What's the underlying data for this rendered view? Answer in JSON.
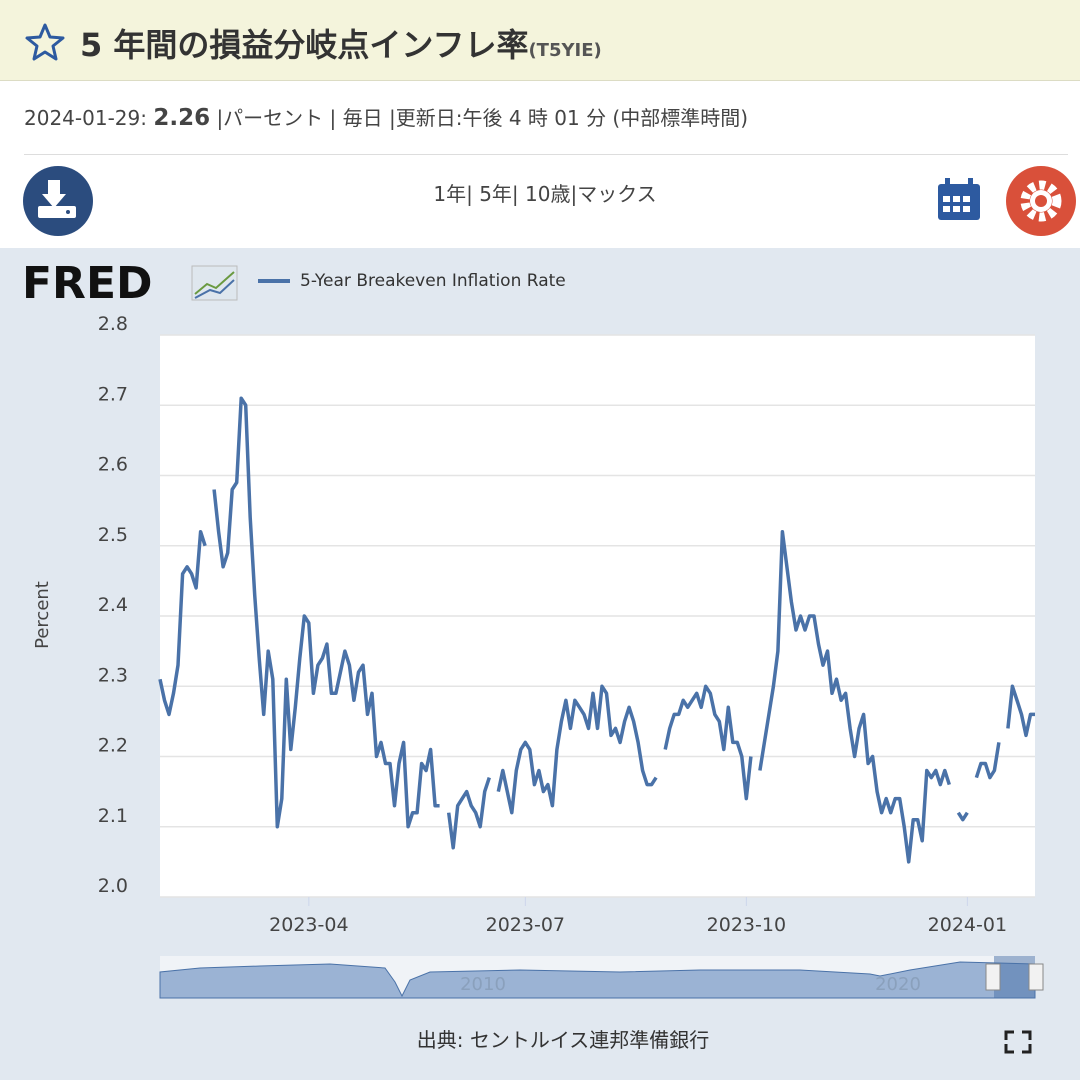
{
  "header": {
    "title": "5 年間の損益分岐点インフレ率",
    "ticker": "(T5YIE)"
  },
  "info": {
    "date": "2024-01-29:",
    "value": "2.26",
    "details": "|パーセント | 毎日 |更新日:午後 4 時 01 分 (中部標準時間)"
  },
  "toolbar": {
    "ranges": "1年| 5年| 10歳|マックス"
  },
  "logo": "FRED",
  "navigator": {
    "labels": [
      "2010",
      "2020"
    ]
  },
  "footer": {
    "source": "出典: セントルイス連邦準備銀行"
  },
  "chart_data": {
    "type": "line",
    "y_label": "Percent",
    "grid": true,
    "legend": "top-left",
    "ylim": [
      2.0,
      2.8
    ],
    "yticks": [
      {
        "value": 2,
        "label": "2.0"
      },
      2.1,
      2.2,
      2.3,
      2.4,
      2.5,
      2.6,
      2.7,
      2.8
    ],
    "categories": [
      null,
      null,
      null,
      null,
      null,
      null,
      null,
      null,
      null,
      null,
      null,
      null,
      null,
      null,
      null,
      null,
      null,
      null,
      null,
      null,
      null,
      null,
      null,
      null,
      null,
      null,
      null,
      null,
      null,
      null,
      null,
      null,
      null,
      "2023-04",
      null,
      null,
      null,
      null,
      null,
      null,
      null,
      null,
      null,
      null,
      null,
      null,
      null,
      null,
      null,
      null,
      null,
      null,
      null,
      null,
      null,
      null,
      null,
      null,
      null,
      null,
      null,
      null,
      null,
      null,
      null,
      null,
      null,
      null,
      null,
      null,
      null,
      null,
      null,
      null,
      null,
      null,
      null,
      null,
      null,
      null,
      null,
      "2023-07",
      null,
      null,
      null,
      null,
      null,
      null,
      null,
      null,
      null,
      null,
      null,
      null,
      null,
      null,
      null,
      null,
      null,
      null,
      null,
      null,
      null,
      null,
      null,
      null,
      null,
      null,
      null,
      null,
      null,
      null,
      null,
      null,
      null,
      null,
      null,
      null,
      null,
      null,
      null,
      null,
      null,
      null,
      null,
      null,
      null,
      null,
      null,
      null,
      "2023-10",
      null,
      null,
      null,
      null,
      null,
      null,
      null,
      null,
      null,
      null,
      null,
      null,
      null,
      null,
      null,
      null,
      null,
      null,
      null,
      null,
      null,
      null,
      null,
      null,
      null,
      null,
      null,
      null,
      null,
      null,
      null,
      null,
      null,
      null,
      null,
      null,
      null,
      null,
      null,
      null,
      null,
      null,
      null,
      null,
      null,
      null,
      null,
      null,
      "2024-01",
      null,
      null,
      null,
      null,
      null,
      null,
      null,
      null,
      null,
      null,
      null,
      null,
      null,
      null,
      null
    ],
    "series": [
      {
        "name": "5-Year Breakeven Inflation Rate",
        "color": "#4a72a8",
        "values": [
          2.31,
          2.28,
          2.26,
          2.29,
          2.33,
          2.46,
          2.47,
          2.46,
          2.44,
          2.52,
          2.5,
          null,
          2.58,
          2.52,
          2.47,
          2.49,
          2.58,
          2.59,
          2.71,
          2.7,
          2.54,
          2.43,
          2.34,
          2.26,
          2.35,
          2.31,
          2.1,
          2.14,
          2.31,
          2.21,
          2.27,
          2.34,
          2.4,
          2.39,
          2.29,
          2.33,
          2.34,
          2.36,
          2.29,
          2.29,
          2.32,
          2.35,
          2.33,
          2.28,
          2.32,
          2.33,
          2.26,
          2.29,
          2.2,
          2.22,
          2.19,
          2.19,
          2.13,
          2.19,
          2.22,
          2.1,
          2.12,
          2.12,
          2.19,
          2.18,
          2.21,
          2.13,
          2.13,
          null,
          2.12,
          2.07,
          2.13,
          2.14,
          2.15,
          2.13,
          2.12,
          2.1,
          2.15,
          2.17,
          null,
          2.15,
          2.18,
          2.15,
          2.12,
          2.18,
          2.21,
          2.22,
          2.21,
          2.16,
          2.18,
          2.15,
          2.16,
          2.13,
          2.21,
          2.25,
          2.28,
          2.24,
          2.28,
          2.27,
          2.26,
          2.24,
          2.29,
          2.24,
          2.3,
          2.29,
          2.23,
          2.24,
          2.22,
          2.25,
          2.27,
          2.25,
          2.22,
          2.18,
          2.16,
          2.16,
          2.17,
          null,
          2.21,
          2.24,
          2.26,
          2.26,
          2.28,
          2.27,
          2.28,
          2.29,
          2.27,
          2.3,
          2.29,
          2.26,
          2.25,
          2.21,
          2.27,
          2.22,
          2.22,
          2.2,
          2.14,
          2.2,
          null,
          2.18,
          2.22,
          2.26,
          2.3,
          2.35,
          2.52,
          2.47,
          2.42,
          2.38,
          2.4,
          2.38,
          2.4,
          2.4,
          2.36,
          2.33,
          2.35,
          2.29,
          2.31,
          2.28,
          2.29,
          2.24,
          2.2,
          2.24,
          2.26,
          2.19,
          2.2,
          2.15,
          2.12,
          2.14,
          2.12,
          2.14,
          2.14,
          2.1,
          2.05,
          2.11,
          2.11,
          2.08,
          2.18,
          2.17,
          2.18,
          2.16,
          2.18,
          2.16,
          null,
          2.12,
          2.11,
          2.12,
          null,
          2.17,
          2.19,
          2.19,
          2.17,
          2.18,
          2.22,
          null,
          2.24,
          2.3,
          2.28,
          2.26,
          2.23,
          2.26,
          2.26
        ]
      }
    ]
  }
}
